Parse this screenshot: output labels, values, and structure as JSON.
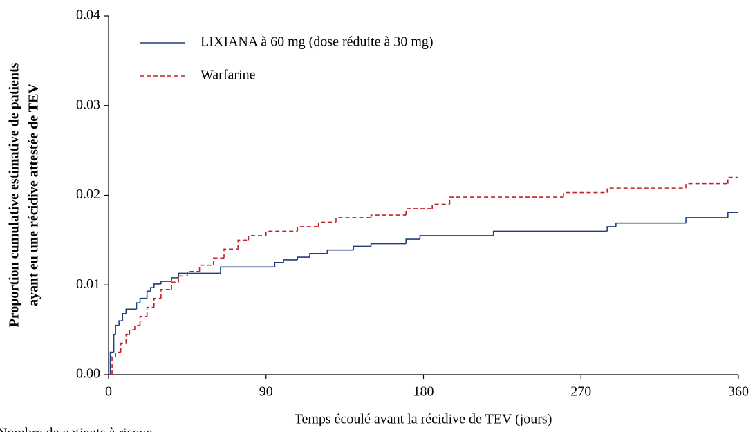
{
  "chart_data": {
    "type": "step",
    "xlabel": "Temps écoulé avant la récidive de TEV (jours)",
    "ylabel": [
      "Proportion cumulative estimative de patients",
      "ayant eu une récidive attestée de TEV"
    ],
    "footnote": "Nombre de patients à risque",
    "xlim": [
      0,
      360
    ],
    "xticks": [
      0,
      90,
      180,
      270,
      360
    ],
    "ylim": [
      0,
      0.04
    ],
    "yticks": [
      {
        "value": 0,
        "label": "0.00"
      },
      0.01,
      0.02,
      0.03,
      0.04
    ],
    "series": [
      {
        "name": "LIXIANA à 60 mg (dose réduite à 30 mg)",
        "color": "#1f3f7a",
        "dash": false,
        "x": [
          0,
          1,
          3,
          4,
          6,
          8,
          10,
          16,
          18,
          22,
          24,
          26,
          30,
          36,
          40,
          64,
          95,
          100,
          108,
          115,
          125,
          140,
          150,
          170,
          178,
          220,
          285,
          290,
          330,
          354,
          360
        ],
        "values": [
          0,
          0.0025,
          0.0045,
          0.0055,
          0.006,
          0.0068,
          0.0073,
          0.008,
          0.0085,
          0.0093,
          0.0097,
          0.0101,
          0.0104,
          0.0108,
          0.0113,
          0.012,
          0.0125,
          0.0128,
          0.0131,
          0.0135,
          0.0139,
          0.0143,
          0.0146,
          0.0151,
          0.0155,
          0.016,
          0.0165,
          0.0169,
          0.0175,
          0.0181,
          0.0181
        ]
      },
      {
        "name": "Warfarine",
        "color": "#c0202a",
        "dash": true,
        "x": [
          0,
          2,
          4,
          7,
          10,
          12,
          15,
          18,
          22,
          26,
          30,
          36,
          40,
          45,
          52,
          60,
          66,
          74,
          80,
          90,
          108,
          120,
          130,
          150,
          170,
          185,
          195,
          260,
          285,
          330,
          354,
          360
        ],
        "values": [
          0,
          0.002,
          0.0025,
          0.0035,
          0.0045,
          0.005,
          0.0055,
          0.0065,
          0.0075,
          0.0085,
          0.0095,
          0.0103,
          0.011,
          0.0115,
          0.0122,
          0.013,
          0.014,
          0.015,
          0.0155,
          0.016,
          0.0165,
          0.017,
          0.0175,
          0.0178,
          0.0185,
          0.019,
          0.0198,
          0.0203,
          0.0208,
          0.0213,
          0.022,
          0.022
        ]
      }
    ]
  }
}
